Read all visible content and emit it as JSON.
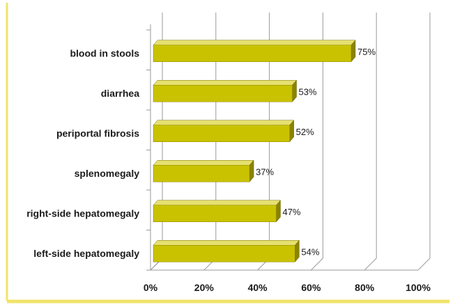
{
  "chart_data": {
    "type": "bar",
    "orientation": "horizontal",
    "style": "3d",
    "categories": [
      "blood in stools",
      "diarrhea",
      "periportal fibrosis",
      "splenomegaly",
      "right-side hepatomegaly",
      "left-side hepatomegaly"
    ],
    "values": [
      75,
      53,
      52,
      37,
      47,
      54
    ],
    "data_labels": [
      "75%",
      "53%",
      "52%",
      "37%",
      "47%",
      "54%"
    ],
    "x_ticks": [
      "0%",
      "20%",
      "40%",
      "60%",
      "80%",
      "100%"
    ],
    "xlim": [
      0,
      100
    ],
    "grid": "vertical",
    "legend": "none"
  },
  "colors": {
    "bar_front": "#c9c200",
    "bar_top": "#e6e070",
    "bar_side": "#8a8300",
    "grid": "#9a9a9a",
    "frame_accent": "#f0e36a"
  }
}
